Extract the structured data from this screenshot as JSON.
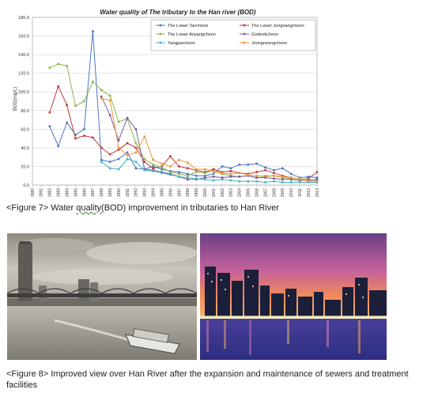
{
  "chart_data": {
    "type": "line",
    "title": "Water quality of The tributary to the Han river (BOD)",
    "ylabel": "BOD(mg/L)",
    "xlabel": "",
    "ylim": [
      0,
      180
    ],
    "yticks": [
      "0.0",
      "20.0",
      "40.0",
      "60.0",
      "80.0",
      "100.0",
      "120.0",
      "140.0",
      "160.0",
      "180.0"
    ],
    "x": [
      "1980",
      "1981",
      "1982",
      "1983",
      "1984",
      "1985",
      "1986",
      "1987",
      "1988",
      "1989",
      "1990",
      "1991",
      "1992",
      "1993",
      "1994",
      "1995",
      "1996",
      "1997",
      "1998",
      "1999",
      "2000",
      "2001",
      "2002",
      "2003",
      "2004",
      "2005",
      "2006",
      "2007",
      "2008",
      "2009",
      "2010",
      "2011",
      "2012",
      "2013"
    ],
    "grid": "horizontal",
    "legend_position": "top-right",
    "series": [
      {
        "name": "The Lower Tancheon",
        "color": "#4a76c4",
        "values": [
          null,
          null,
          63,
          42,
          67,
          54,
          60,
          165,
          27,
          25,
          28,
          35,
          18,
          17,
          20,
          17,
          15,
          14,
          12,
          10,
          10,
          12,
          20,
          18,
          22,
          22,
          23,
          19,
          16,
          18,
          12,
          8,
          9,
          8
        ]
      },
      {
        "name": "The Lower Jungnangcheon",
        "color": "#c0393b",
        "values": [
          null,
          null,
          78,
          106,
          86,
          50,
          53,
          51,
          40,
          33,
          38,
          45,
          40,
          25,
          18,
          20,
          31,
          20,
          18,
          16,
          14,
          17,
          14,
          15,
          13,
          12,
          14,
          16,
          13,
          10,
          8,
          6,
          7,
          14
        ]
      },
      {
        "name": "The Lower Anyangcheon",
        "color": "#8cb34a",
        "values": [
          null,
          null,
          126,
          130,
          128,
          85,
          90,
          111,
          102,
          96,
          68,
          71,
          45,
          28,
          22,
          19,
          14,
          12,
          10,
          14,
          13,
          15,
          12,
          10,
          9,
          10,
          8,
          9,
          10,
          8,
          7,
          7,
          6,
          5
        ]
      },
      {
        "name": "Godeokcheon",
        "color": "#7b5a9e",
        "values": [
          null,
          null,
          null,
          null,
          null,
          null,
          null,
          null,
          95,
          75,
          48,
          72,
          60,
          17,
          16,
          14,
          12,
          9,
          6,
          6,
          8,
          9,
          8,
          9,
          9,
          10,
          8,
          8,
          7,
          6,
          6,
          5,
          5,
          6
        ]
      },
      {
        "name": "Yangjaecheon",
        "color": "#3fb3c9",
        "values": [
          null,
          null,
          null,
          null,
          null,
          null,
          null,
          null,
          25,
          18,
          17,
          28,
          25,
          16,
          15,
          13,
          11,
          9,
          8,
          7,
          6,
          5,
          6,
          5,
          4,
          4,
          4,
          3,
          4,
          3,
          3,
          3,
          3,
          3
        ]
      },
      {
        "name": "Jeongneungcheon",
        "color": "#f0953a",
        "values": [
          null,
          null,
          null,
          null,
          null,
          null,
          null,
          null,
          93,
          91,
          40,
          32,
          35,
          52,
          27,
          23,
          20,
          27,
          24,
          17,
          17,
          15,
          13,
          12,
          13,
          11,
          10,
          10,
          10,
          9,
          8,
          6,
          4,
          4
        ]
      }
    ]
  },
  "captions": {
    "fig7_prefix": "<Figure 7> Water ",
    "fig7_wavy": "quality(",
    "fig7_suffix": "BOD) improvement in tributaries to Han River",
    "fig8": "<Figure 8> Improved view over Han River after the expansion and maintenance of sewers and treatment facilities"
  }
}
